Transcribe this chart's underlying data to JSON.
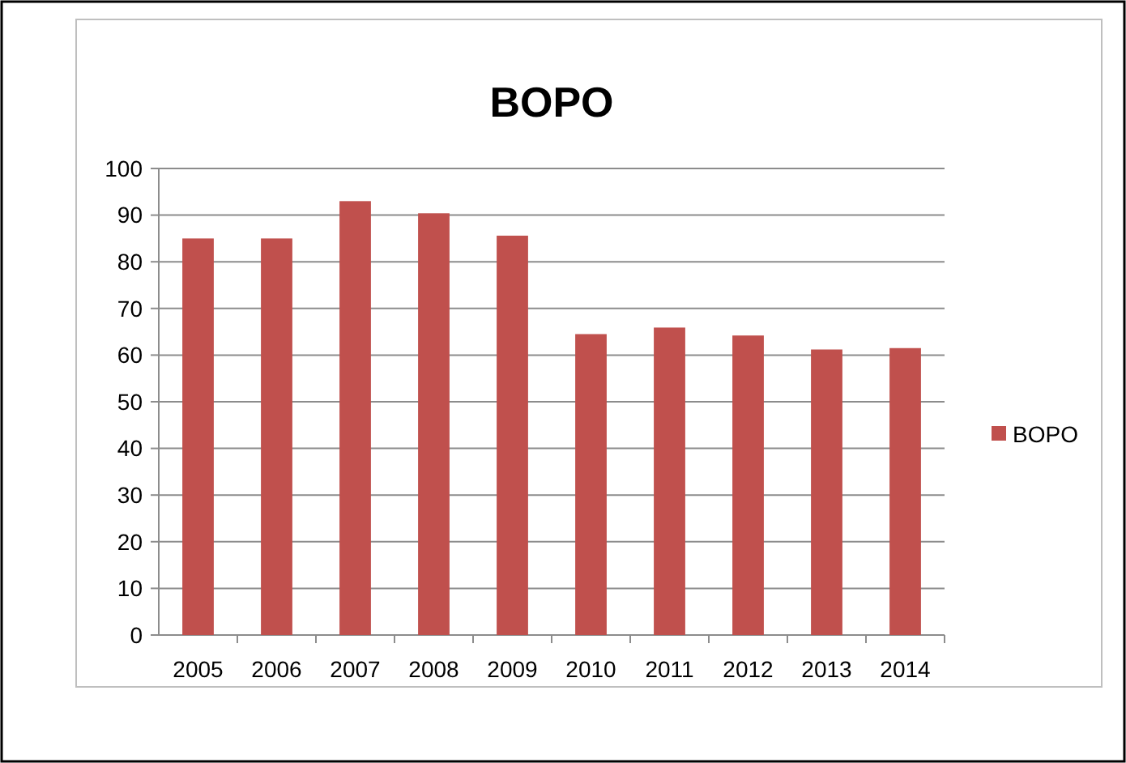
{
  "chart_data": {
    "type": "bar",
    "title": "BOPO",
    "categories": [
      "2005",
      "2006",
      "2007",
      "2008",
      "2009",
      "2010",
      "2011",
      "2012",
      "2013",
      "2014"
    ],
    "series": [
      {
        "name": "BOPO",
        "color": "#c0504d",
        "values": [
          85,
          85,
          93,
          90.4,
          85.6,
          64.5,
          65.9,
          64.2,
          61.2,
          61.5
        ]
      }
    ],
    "ylim": [
      0,
      100
    ],
    "yticks": [
      0,
      10,
      20,
      30,
      40,
      50,
      60,
      70,
      80,
      90,
      100
    ],
    "grid": "y",
    "legend": "right"
  }
}
